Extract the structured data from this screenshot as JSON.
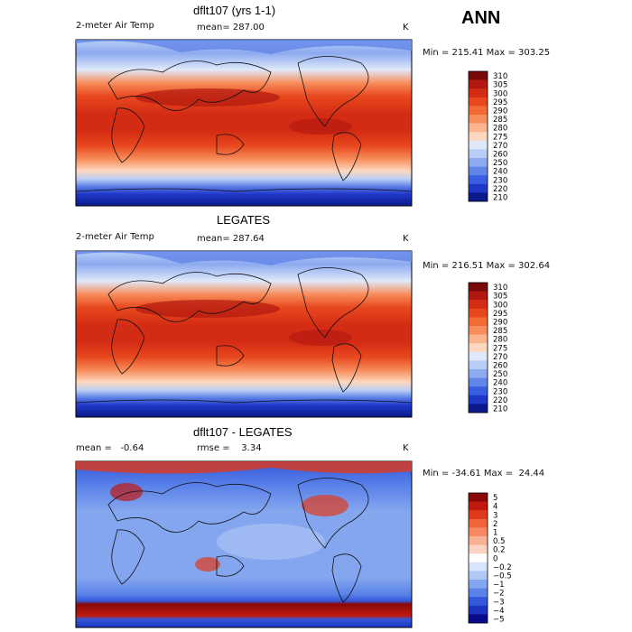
{
  "season": "ANN",
  "panels": [
    {
      "title": "dflt107 (yrs 1-1)",
      "variable": "2-meter Air Temp",
      "stat1": "mean= 287.00",
      "stat2": "",
      "units": "K",
      "minmax": "Min = 215.41 Max = 303.25"
    },
    {
      "title": "LEGATES",
      "variable": "2-meter Air Temp",
      "stat1": "mean= 287.64",
      "stat2": "",
      "units": "K",
      "minmax": "Min = 216.51 Max = 302.64"
    },
    {
      "title": "dflt107 - LEGATES",
      "variable": "",
      "stat1": "mean =   -0.64",
      "stat2": "rmse =    3.34",
      "units": "K",
      "minmax": "Min = -34.61 Max =  24.44"
    }
  ],
  "chart_data": [
    {
      "type": "heatmap",
      "title": "dflt107 (yrs 1-1)",
      "subtitle": "2-meter Air Temp",
      "mean": 287.0,
      "min": 215.41,
      "max": 303.25,
      "units": "K",
      "colorbar_levels": [
        "310",
        "305",
        "300",
        "295",
        "290",
        "285",
        "280",
        "275",
        "270",
        "260",
        "250",
        "240",
        "230",
        "220",
        "210"
      ],
      "colorbar_colors": [
        "#7a0a0a",
        "#b01810",
        "#d42c14",
        "#e8481e",
        "#f26a34",
        "#f78e5c",
        "#fab48e",
        "#fcd8c0",
        "#dfe9fa",
        "#b8cef6",
        "#8daaf0",
        "#6285e8",
        "#3a5ee0",
        "#1f38c8",
        "#0a1a8a"
      ]
    },
    {
      "type": "heatmap",
      "title": "LEGATES",
      "subtitle": "2-meter Air Temp",
      "mean": 287.64,
      "min": 216.51,
      "max": 302.64,
      "units": "K",
      "colorbar_levels": [
        "310",
        "305",
        "300",
        "295",
        "290",
        "285",
        "280",
        "275",
        "270",
        "260",
        "250",
        "240",
        "230",
        "220",
        "210"
      ],
      "colorbar_colors": [
        "#7a0a0a",
        "#b01810",
        "#d42c14",
        "#e8481e",
        "#f26a34",
        "#f78e5c",
        "#fab48e",
        "#fcd8c0",
        "#dfe9fa",
        "#b8cef6",
        "#8daaf0",
        "#6285e8",
        "#3a5ee0",
        "#1f38c8",
        "#0a1a8a"
      ]
    },
    {
      "type": "heatmap",
      "title": "dflt107 - LEGATES",
      "mean": -0.64,
      "rmse": 3.34,
      "min": -34.61,
      "max": 24.44,
      "units": "K",
      "colorbar_levels": [
        "5",
        "4",
        "3",
        "2",
        "1",
        "0.5",
        "0.2",
        "0",
        "−0.2",
        "−0.5",
        "−1",
        "−2",
        "−3",
        "−4",
        "−5"
      ],
      "colorbar_colors": [
        "#8a0808",
        "#c01a10",
        "#e03a1c",
        "#f0643a",
        "#f78a64",
        "#fab092",
        "#fcd2c0",
        "#ffffff",
        "#d8e4fb",
        "#b0c8f5",
        "#84a6ef",
        "#5a82e8",
        "#3458da",
        "#1c34c0",
        "#0a0a8c"
      ]
    }
  ]
}
